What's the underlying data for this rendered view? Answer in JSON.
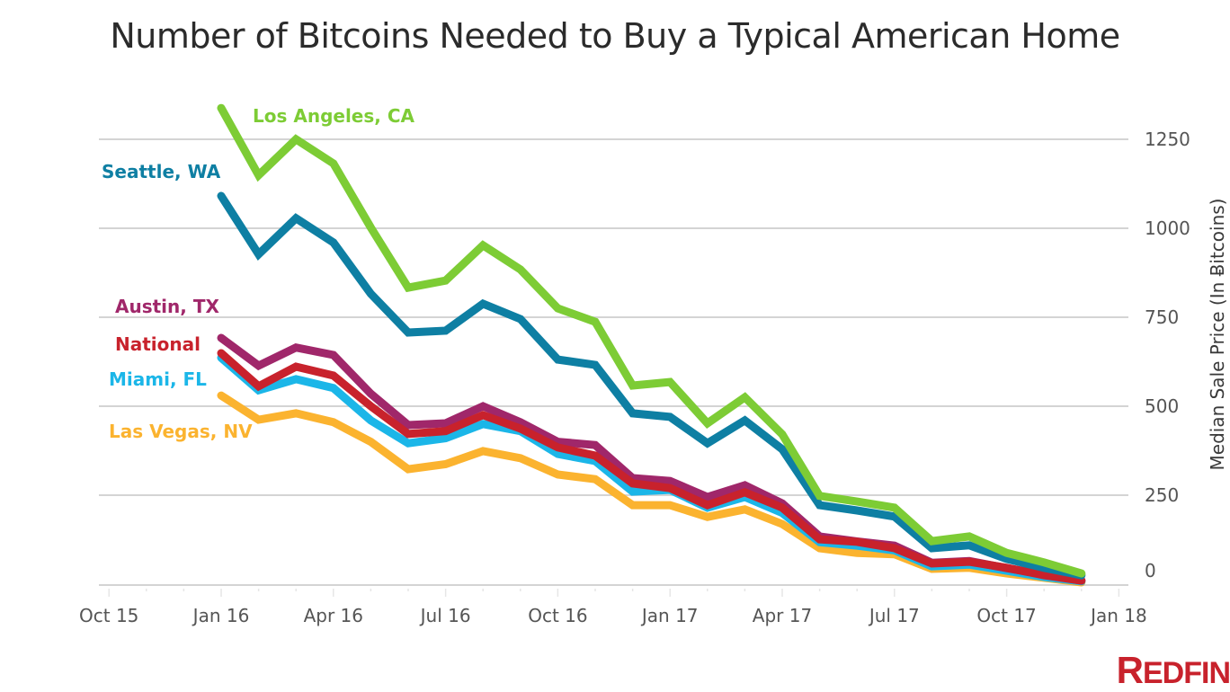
{
  "chart_data": {
    "type": "line",
    "title": "Number of Bitcoins Needed to Buy a Typical American Home",
    "xlabel": "",
    "ylabel": "Median Sale Price (In Ƀitcoins)",
    "y_axis_side": "right",
    "ylim": [
      0,
      1300
    ],
    "yticks": [
      0,
      250,
      500,
      750,
      1000,
      1250
    ],
    "ytick_labels": [
      "0",
      "250",
      "500",
      "750",
      "1000",
      "1250"
    ],
    "xtick_labels": [
      "Oct 15",
      "Jan 16",
      "Apr 16",
      "Jul 16",
      "Oct 16",
      "Jan 17",
      "Apr 17",
      "Jul 17",
      "Oct 17",
      "Jan 18"
    ],
    "xtick_month_index": [
      -3,
      0,
      3,
      6,
      9,
      12,
      15,
      18,
      21,
      24
    ],
    "x": [
      "Jan 16",
      "Feb 16",
      "Mar 16",
      "Apr 16",
      "May 16",
      "Jun 16",
      "Jul 16",
      "Aug 16",
      "Sep 16",
      "Oct 16",
      "Nov 16",
      "Dec 16",
      "Jan 17",
      "Feb 17",
      "Mar 17",
      "Apr 17",
      "May 17",
      "Jun 17",
      "Jul 17",
      "Aug 17",
      "Sep 17",
      "Oct 17",
      "Nov 17",
      "Dec 17"
    ],
    "grid": true,
    "legend": "direct-labels-left",
    "series": [
      {
        "name": "Las Vegas, NV",
        "color": "#fbb32f",
        "values": [
          530,
          462,
          480,
          455,
          400,
          323,
          337,
          374,
          354,
          308,
          295,
          222,
          222,
          189,
          210,
          169,
          101,
          88,
          84,
          43,
          46,
          30,
          18,
          5
        ]
      },
      {
        "name": "Miami, FL",
        "color": "#1bb6e8",
        "values": [
          636,
          545,
          576,
          551,
          460,
          396,
          410,
          450,
          430,
          366,
          346,
          260,
          265,
          215,
          245,
          200,
          118,
          108,
          95,
          50,
          55,
          38,
          20,
          8
        ]
      },
      {
        "name": "Austin, TX",
        "color": "#a0276a",
        "values": [
          692,
          614,
          665,
          644,
          535,
          447,
          452,
          500,
          455,
          400,
          391,
          298,
          290,
          245,
          278,
          227,
          134,
          120,
          108,
          60,
          65,
          45,
          27,
          10
        ]
      },
      {
        "name": "National",
        "color": "#c8222c",
        "values": [
          649,
          556,
          611,
          586,
          500,
          422,
          430,
          475,
          437,
          384,
          361,
          283,
          270,
          222,
          258,
          215,
          126,
          119,
          101,
          58,
          63,
          46,
          25,
          10
        ]
      },
      {
        "name": "Seattle, WA",
        "color": "#0e7fa3",
        "values": [
          1091,
          927,
          1028,
          960,
          816,
          707,
          712,
          788,
          745,
          631,
          616,
          480,
          470,
          396,
          460,
          379,
          222,
          207,
          190,
          101,
          109,
          71,
          46,
          25
        ]
      },
      {
        "name": "Los Angeles, CA",
        "color": "#7dcc35",
        "values": [
          1338,
          1149,
          1250,
          1182,
          1002,
          833,
          853,
          952,
          884,
          775,
          737,
          558,
          568,
          452,
          525,
          421,
          248,
          232,
          215,
          121,
          134,
          88,
          61,
          30
        ]
      }
    ],
    "annotations": [
      {
        "text": "Los Angeles, CA",
        "series": "Los Angeles, CA"
      },
      {
        "text": "Seattle, WA",
        "series": "Seattle, WA"
      },
      {
        "text": "Austin, TX",
        "series": "Austin, TX"
      },
      {
        "text": "National",
        "series": "National"
      },
      {
        "text": "Miami, FL",
        "series": "Miami, FL"
      },
      {
        "text": "Las Vegas, NV",
        "series": "Las Vegas, NV"
      }
    ]
  },
  "branding": {
    "logo_text_first": "R",
    "logo_text_rest": "EDFIN",
    "logo_color": "#c8222c"
  }
}
